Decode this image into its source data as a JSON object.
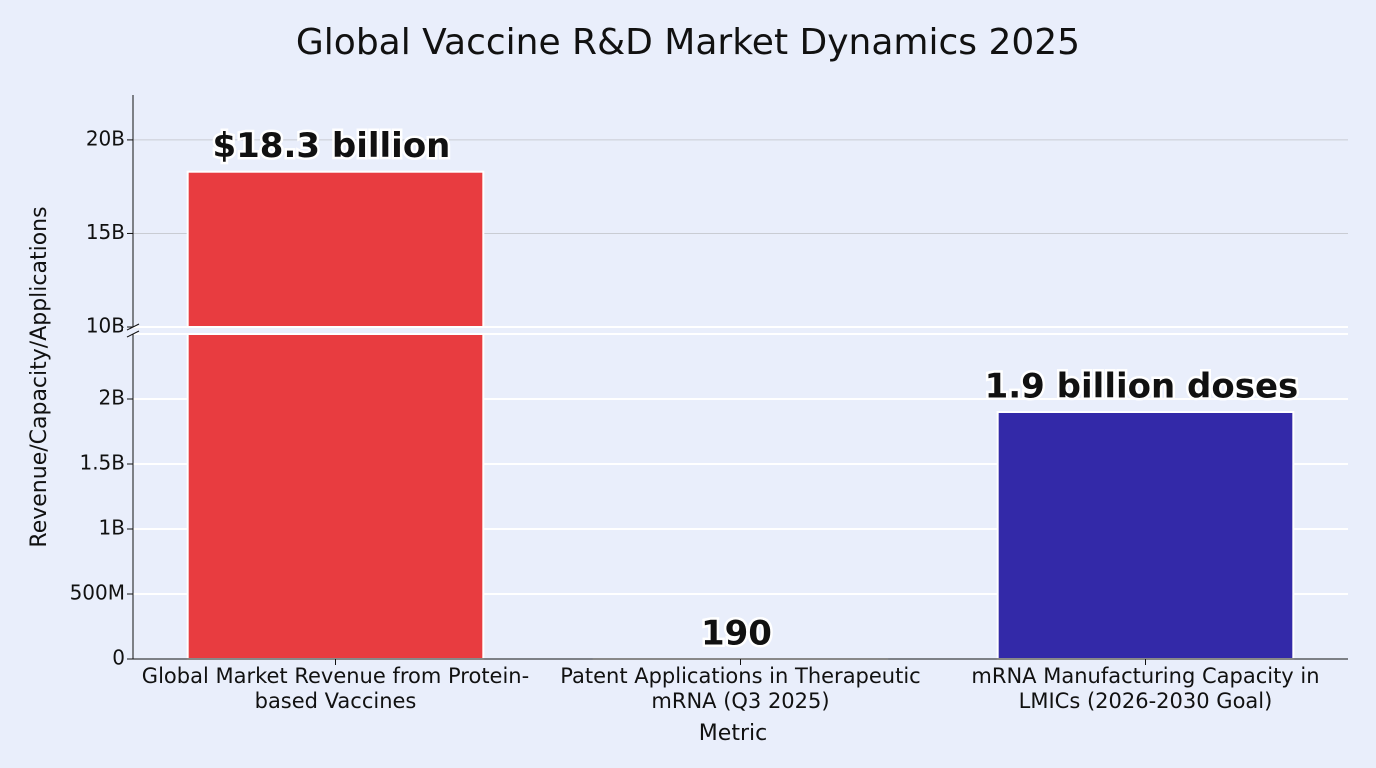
{
  "chart_data": {
    "type": "bar",
    "title": "Global Vaccine R&D Market Dynamics 2025",
    "xlabel": "Metric",
    "ylabel": "Revenue/Capacity/Applications",
    "categories": [
      "Global Market Revenue from Protein-based Vaccines",
      "Patent Applications in Therapeutic mRNA (Q3 2025)",
      "mRNA Manufacturing Capacity in LMICs (2026-2030 Goal)"
    ],
    "values": [
      18300000000,
      190,
      1900000000
    ],
    "value_labels": [
      "$18.3 billion",
      "190",
      "1.9 billion doses"
    ],
    "colors": [
      "#e83c40",
      "#5b63e8",
      "#3329a8"
    ],
    "ylim": [
      0,
      22400000000
    ],
    "y_break": [
      2500000000,
      10000000000
    ],
    "yticks": [
      0,
      {
        "value": 500000000,
        "label": "500M"
      },
      {
        "value": 1000000000,
        "label": "1B"
      },
      {
        "value": 1500000000,
        "label": "1.5B"
      },
      {
        "value": 2000000000,
        "label": "2B"
      },
      {
        "value": 10000000000,
        "label": "10B"
      },
      {
        "value": 15000000000,
        "label": "15B"
      },
      {
        "value": 20000000000,
        "label": "20B"
      }
    ],
    "grid": true
  }
}
